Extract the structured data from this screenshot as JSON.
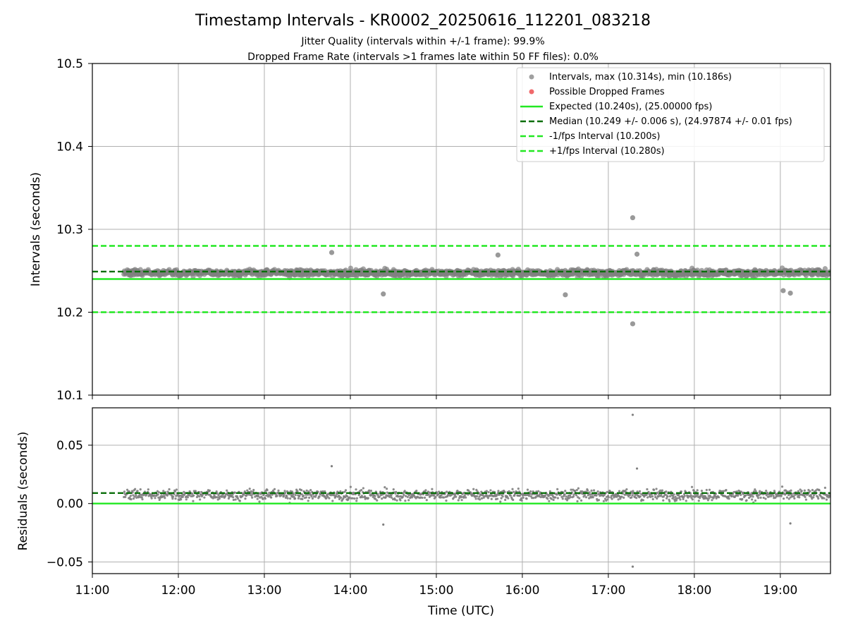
{
  "title": "Timestamp Intervals - KR0002_20250616_112201_083218",
  "subtitle_1": "Jitter Quality (intervals within +/-1 frame): 99.9%",
  "subtitle_2": "Dropped Frame Rate (intervals >1 frames late within 50 FF files): 0.0%",
  "colors": {
    "points": "#808080",
    "dropped": "#f0696b",
    "expected": "#22e822",
    "median": "#0a6e0a",
    "interval": "#22e822",
    "grid": "#b0b0b0"
  },
  "chart_data": [
    {
      "type": "scatter",
      "xlabel": "",
      "ylabel": "Intervals (seconds)",
      "xlim": [
        "11:00",
        "19:35"
      ],
      "ylim": [
        10.1,
        10.5
      ],
      "yticks": [
        "10.1",
        "10.2",
        "10.3",
        "10.4",
        "10.5"
      ],
      "grid": true,
      "legend_position": "top-right",
      "series": [
        {
          "name": "Intervals, max (10.314s), min (10.186s)",
          "kind": "scatter",
          "x_range": [
            "11:22",
            "19:35"
          ],
          "center": 10.2475,
          "spread": 0.005,
          "outliers": [
            [
              "17:17",
              10.314
            ],
            [
              "17:17",
              10.186
            ],
            [
              "14:23",
              10.222
            ],
            [
              "16:30",
              10.221
            ],
            [
              "13:47",
              10.272
            ],
            [
              "15:43",
              10.269
            ],
            [
              "17:20",
              10.27
            ],
            [
              "19:02",
              10.226
            ],
            [
              "19:07",
              10.223
            ]
          ]
        },
        {
          "name": "Possible Dropped Frames",
          "kind": "scatter",
          "points": []
        },
        {
          "name": "Expected (10.240s), (25.00000 fps)",
          "kind": "hline",
          "y": 10.24
        },
        {
          "name": "Median (10.249 +/- 0.006 s), (24.97874 +/- 0.01 fps)",
          "kind": "hline",
          "y": 10.249
        },
        {
          "name": "-1/fps Interval (10.200s)",
          "kind": "hline",
          "y": 10.2
        },
        {
          "name": "+1/fps Interval (10.280s)",
          "kind": "hline",
          "y": 10.28
        }
      ]
    },
    {
      "type": "scatter",
      "xlabel": "Time (UTC)",
      "ylabel": "Residuals (seconds)",
      "xlim": [
        "11:00",
        "19:35"
      ],
      "ylim": [
        -0.06,
        0.082
      ],
      "yticks": [
        "−0.05",
        "0.00",
        "0.05"
      ],
      "xticks": [
        "11:00",
        "12:00",
        "13:00",
        "14:00",
        "15:00",
        "16:00",
        "17:00",
        "18:00",
        "19:00"
      ],
      "grid": true,
      "series": [
        {
          "kind": "scatter",
          "center": 0.0075,
          "spread": 0.006,
          "outliers": [
            [
              "17:17",
              0.076
            ],
            [
              "17:17",
              -0.054
            ],
            [
              "14:23",
              -0.018
            ],
            [
              "13:47",
              0.032
            ],
            [
              "17:20",
              0.03
            ],
            [
              "19:07",
              -0.017
            ]
          ]
        },
        {
          "kind": "hline",
          "name": "Expected",
          "y": 0.0
        },
        {
          "kind": "hline",
          "name": "Median",
          "y": 0.009
        }
      ]
    }
  ]
}
